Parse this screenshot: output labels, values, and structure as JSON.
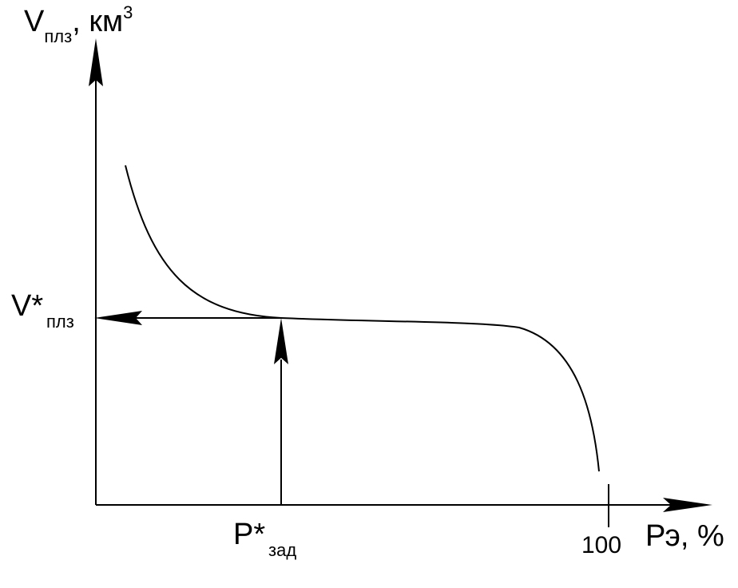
{
  "y_axis": {
    "label_main": "V",
    "label_sub": "плз",
    "label_unit": ", км",
    "label_sup": "3"
  },
  "x_axis": {
    "label": "Рэ, %",
    "tick_100": "100"
  },
  "marker_v": {
    "main": "V*",
    "sub": "плз"
  },
  "marker_p": {
    "main": "P*",
    "sub": "зад"
  },
  "style": {
    "line_color": "#000000",
    "background": "#ffffff"
  }
}
